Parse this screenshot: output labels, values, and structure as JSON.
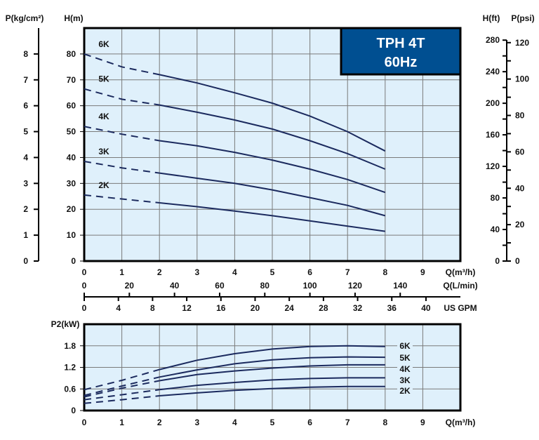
{
  "chart_data": [
    {
      "type": "line",
      "title": "TPH 4T",
      "subtitle": "60Hz",
      "xlabel": "Q(m³/h)",
      "ylabel": "H(m)",
      "ylabel_left2": "P(kg/cm²)",
      "ylabel_right1": "H(ft)",
      "ylabel_right2": "P(psi)",
      "xlabel2": "Q(L/min)",
      "xlabel3": "US GPM",
      "xlim": [
        0,
        10
      ],
      "ylim": [
        0,
        90
      ],
      "x_ticks": [
        0,
        1,
        2,
        3,
        4,
        5,
        6,
        7,
        8,
        9
      ],
      "y_ticks": [
        0,
        10,
        20,
        30,
        40,
        50,
        60,
        70,
        80
      ],
      "kg_ticks": [
        0,
        1,
        2,
        3,
        4,
        5,
        6,
        7,
        8
      ],
      "ft_ticks": [
        0,
        40,
        80,
        120,
        160,
        200,
        240,
        280
      ],
      "psi_ticks": [
        0,
        20,
        40,
        60,
        80,
        100,
        120
      ],
      "lmin_ticks": [
        0,
        20,
        40,
        60,
        80,
        100,
        120,
        140
      ],
      "gpm_ticks": [
        0,
        4,
        8,
        12,
        16,
        20,
        24,
        28,
        32,
        36,
        40
      ],
      "grid": true,
      "dashed_until_x": 2,
      "x": [
        0,
        1,
        2,
        3,
        4,
        5,
        6,
        7,
        8
      ],
      "series": [
        {
          "name": "6K",
          "values": [
            80,
            75,
            72,
            68.8,
            65,
            61,
            56,
            50,
            42.5
          ]
        },
        {
          "name": "5K",
          "values": [
            66.5,
            62.5,
            60.3,
            57.5,
            54.5,
            51,
            46.5,
            41.5,
            35.5
          ]
        },
        {
          "name": "4K",
          "values": [
            52,
            49,
            46.5,
            44.5,
            42,
            39,
            35.5,
            31.5,
            26.5
          ]
        },
        {
          "name": "3K",
          "values": [
            38.5,
            36,
            34,
            32,
            30,
            27.5,
            24.5,
            21.5,
            17.5
          ]
        },
        {
          "name": "2K",
          "values": [
            25.5,
            24,
            22.5,
            21,
            19.3,
            17.5,
            15.5,
            13.5,
            11.5
          ]
        }
      ]
    },
    {
      "type": "line",
      "xlabel": "Q(m³/h)",
      "ylabel": "P2(kW)",
      "xlim": [
        0,
        10
      ],
      "ylim": [
        0,
        2.4
      ],
      "x_ticks": [
        0,
        1,
        2,
        3,
        4,
        5,
        6,
        7,
        8,
        9
      ],
      "y_ticks": [
        "0",
        "0.6",
        "1.2",
        "1.8"
      ],
      "grid": true,
      "dashed_until_x": 2,
      "x": [
        0,
        1,
        2,
        3,
        4,
        5,
        6,
        7,
        8
      ],
      "series": [
        {
          "name": "6K",
          "values": [
            0.58,
            0.84,
            1.14,
            1.4,
            1.58,
            1.71,
            1.78,
            1.8,
            1.78
          ]
        },
        {
          "name": "5K",
          "values": [
            0.42,
            0.68,
            0.93,
            1.13,
            1.3,
            1.41,
            1.47,
            1.49,
            1.48
          ]
        },
        {
          "name": "4K",
          "values": [
            0.38,
            0.62,
            0.83,
            1.0,
            1.1,
            1.18,
            1.24,
            1.27,
            1.27
          ]
        },
        {
          "name": "3K",
          "values": [
            0.3,
            0.44,
            0.58,
            0.7,
            0.78,
            0.85,
            0.89,
            0.91,
            0.91
          ]
        },
        {
          "name": "2K",
          "values": [
            0.2,
            0.3,
            0.41,
            0.49,
            0.56,
            0.61,
            0.65,
            0.67,
            0.67
          ]
        }
      ]
    }
  ],
  "colors": {
    "plot_bg": "#dff0fb",
    "line": "#1b2a5e",
    "title_box": "#004f91",
    "grid": "#7a7a7a"
  }
}
